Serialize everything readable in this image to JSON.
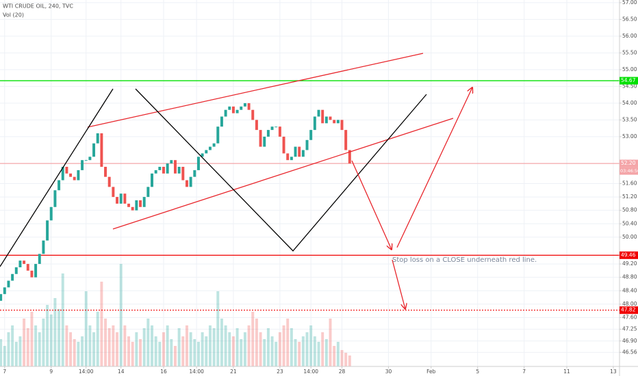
{
  "chart_data": {
    "type": "candlestick",
    "title": "WTI CRUDE OIL, 240, TVC",
    "subtitle": "Vol (20)",
    "annotation": "Stop loss on a CLOSE underneath red line.",
    "countdown": "03:46:50",
    "up_color": "#26a69a",
    "down_color": "#ef5350",
    "grid": true,
    "xlim": [
      -0.2,
      159.6
    ],
    "xticks": [
      {
        "value": 1,
        "label": "7"
      },
      {
        "value": 13,
        "label": "9"
      },
      {
        "value": 22,
        "label": "14:00"
      },
      {
        "value": 31,
        "label": "14"
      },
      {
        "value": 42,
        "label": "16"
      },
      {
        "value": 50.5,
        "label": "14:00"
      },
      {
        "value": 60,
        "label": "21"
      },
      {
        "value": 72,
        "label": "23"
      },
      {
        "value": 80,
        "label": "14:00"
      },
      {
        "value": 88,
        "label": "28"
      },
      {
        "value": 100,
        "label": "30"
      },
      {
        "value": 111,
        "label": "Feb"
      },
      {
        "value": 123,
        "label": "5"
      },
      {
        "value": 135,
        "label": "7"
      },
      {
        "value": 146,
        "label": "11"
      },
      {
        "value": 158,
        "label": "13"
      }
    ],
    "ylim": [
      46.14,
      57.08
    ],
    "yticks": [
      {
        "value": 57,
        "label": "57.00"
      },
      {
        "value": 56.5,
        "label": "56.50"
      },
      {
        "value": 56,
        "label": "56.00"
      },
      {
        "value": 55.5,
        "label": "55.50"
      },
      {
        "value": 55,
        "label": "55.00"
      },
      {
        "value": 54.5,
        "label": "54.50"
      },
      {
        "value": 54,
        "label": "54.00"
      },
      {
        "value": 53.5,
        "label": "53.50"
      },
      {
        "value": 53,
        "label": "53.00"
      },
      {
        "value": 51.6,
        "label": "51.60"
      },
      {
        "value": 51.2,
        "label": "51.20"
      },
      {
        "value": 50.8,
        "label": "50.80"
      },
      {
        "value": 50.4,
        "label": "50.40"
      },
      {
        "value": 50,
        "label": "50.00"
      },
      {
        "value": 49.2,
        "label": "49.20"
      },
      {
        "value": 48.8,
        "label": "48.80"
      },
      {
        "value": 48.4,
        "label": "48.40"
      },
      {
        "value": 48,
        "label": "48.00"
      },
      {
        "value": 47.6,
        "label": "47.60"
      },
      {
        "value": 47.25,
        "label": "47.25"
      },
      {
        "value": 46.9,
        "label": "46.90"
      },
      {
        "value": 46.56,
        "label": "46.56"
      }
    ],
    "levels": [
      {
        "value": 54.67,
        "label": "54.67",
        "color": "#00e000",
        "style": "solid"
      },
      {
        "value": 52.2,
        "label": "52.20",
        "color": "#f4a5a8",
        "style": "solid"
      },
      {
        "value": 49.46,
        "label": "49.46",
        "color": "#f00000",
        "style": "solid"
      },
      {
        "value": 47.82,
        "label": "47.82",
        "color": "#f00000",
        "style": "dotted"
      }
    ],
    "open": [
      48.1,
      48.3,
      48.5,
      48.7,
      48.9,
      49.1,
      49.3,
      49.2,
      49,
      48.8,
      49.2,
      49.5,
      49.9,
      50.5,
      50.9,
      51.4,
      51.7,
      52.1,
      51.9,
      51.8,
      51.7,
      52,
      52.3,
      52.3,
      52.4,
      52.8,
      53.1,
      52.1,
      51.8,
      51.5,
      51.2,
      51,
      51.3,
      51,
      50.9,
      50.8,
      51.1,
      50.9,
      51.2,
      51.5,
      51.9,
      52,
      52.1,
      51.9,
      52.2,
      52.3,
      51.9,
      52.1,
      51.7,
      51.5,
      51.8,
      52,
      52.4,
      52.5,
      52.6,
      52.7,
      52.8,
      53.3,
      53.6,
      53.8,
      53.9,
      53.7,
      53.8,
      53.9,
      54,
      53.8,
      53.5,
      53.2,
      52.7,
      53,
      53.2,
      53.3,
      53.3,
      53,
      52.5,
      52.3,
      52.4,
      52.7,
      52.4,
      52.6,
      52.9,
      53.2,
      53.6,
      53.8,
      53.4,
      53.6,
      53.5,
      53.4,
      53.5,
      53.2,
      52.6
    ],
    "close": [
      48.3,
      48.5,
      48.7,
      48.9,
      49.1,
      49.3,
      49.2,
      49,
      48.8,
      49.2,
      49.5,
      49.9,
      50.5,
      50.9,
      51.4,
      51.7,
      52.1,
      51.9,
      51.8,
      51.7,
      52,
      52.3,
      52.3,
      52.4,
      52.8,
      53.1,
      52.1,
      51.8,
      51.5,
      51.2,
      51,
      51.3,
      51,
      50.9,
      50.8,
      51.1,
      50.9,
      51.2,
      51.5,
      51.9,
      52,
      52.1,
      51.9,
      52.2,
      52.3,
      51.9,
      52.1,
      51.7,
      51.5,
      51.8,
      52,
      52.4,
      52.5,
      52.6,
      52.7,
      52.8,
      53.3,
      53.6,
      53.8,
      53.9,
      53.7,
      53.8,
      53.9,
      54,
      53.8,
      53.5,
      53.2,
      52.7,
      53,
      53.2,
      53.3,
      53.3,
      53,
      52.5,
      52.3,
      52.4,
      52.7,
      52.4,
      52.6,
      52.9,
      53.2,
      53.6,
      53.8,
      53.4,
      53.6,
      53.5,
      53.4,
      53.5,
      53.2,
      52.6,
      52.2
    ],
    "vlim": [
      0,
      100
    ],
    "volume": [
      20,
      15,
      25,
      30,
      18,
      22,
      35,
      28,
      40,
      30,
      25,
      35,
      45,
      38,
      50,
      42,
      68,
      30,
      25,
      20,
      18,
      22,
      55,
      30,
      25,
      40,
      62,
      35,
      28,
      30,
      25,
      75,
      30,
      22,
      18,
      25,
      20,
      28,
      35,
      30,
      22,
      18,
      25,
      30,
      20,
      15,
      28,
      22,
      30,
      25,
      20,
      18,
      25,
      22,
      30,
      28,
      55,
      35,
      30,
      25,
      22,
      28,
      20,
      25,
      30,
      40,
      35,
      25,
      20,
      28,
      22,
      18,
      25,
      30,
      35,
      28,
      20,
      18,
      22,
      25,
      30,
      22,
      18,
      25,
      20,
      35,
      15,
      18,
      12,
      10,
      8
    ]
  }
}
